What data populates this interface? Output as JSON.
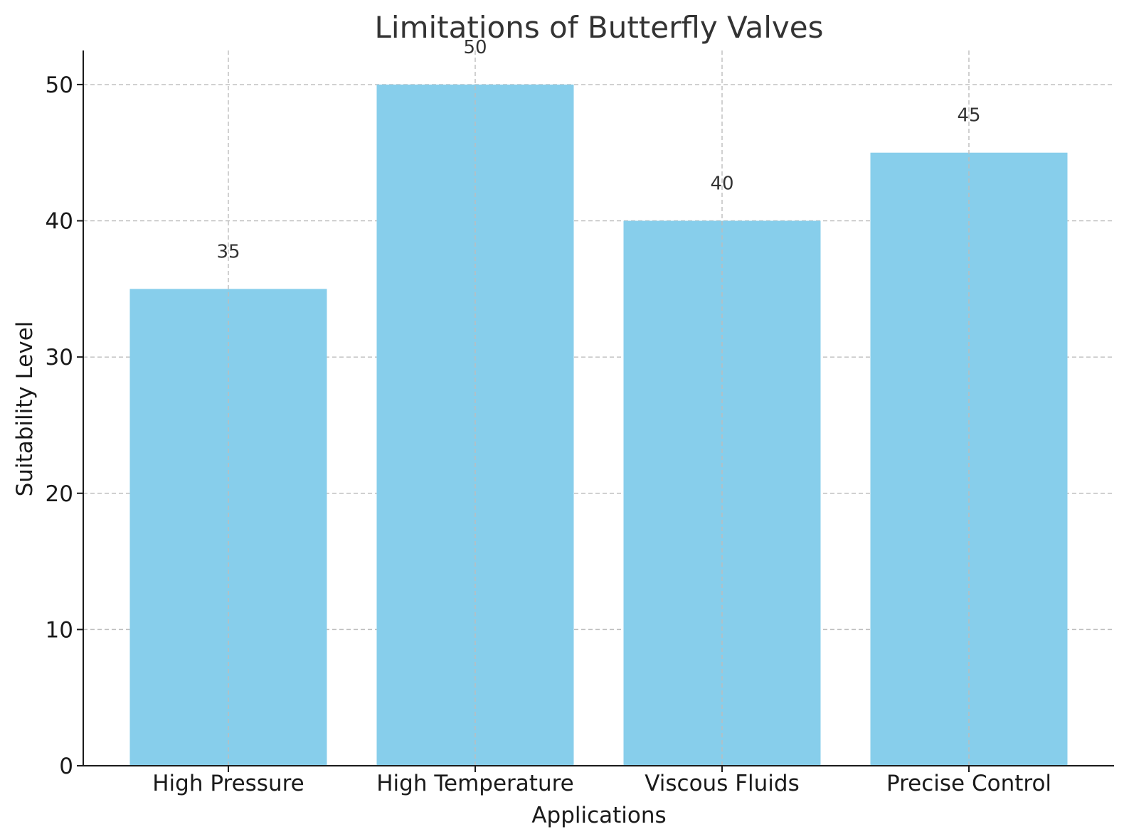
{
  "chart_data": {
    "type": "bar",
    "title": "Limitations of Butterfly Valves",
    "xlabel": "Applications",
    "ylabel": "Suitability Level",
    "categories": [
      "High Pressure",
      "High Temperature",
      "Viscous Fluids",
      "Precise Control"
    ],
    "values": [
      35,
      50,
      40,
      45
    ],
    "data_labels": [
      "35",
      "50",
      "40",
      "45"
    ],
    "ylim": [
      0,
      52.5
    ],
    "yticks": [
      0,
      10,
      20,
      30,
      40,
      50
    ],
    "ytick_labels": [
      "0",
      "10",
      "20",
      "30",
      "40",
      "50"
    ],
    "grid": true,
    "bar_color": "#87ceeb"
  }
}
